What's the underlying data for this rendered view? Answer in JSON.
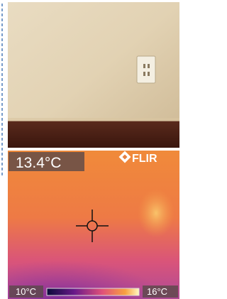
{
  "thermal": {
    "spot_temperature": "13.4°C",
    "brand": "FLIR",
    "scale_min": "10°C",
    "scale_max": "16°C"
  }
}
